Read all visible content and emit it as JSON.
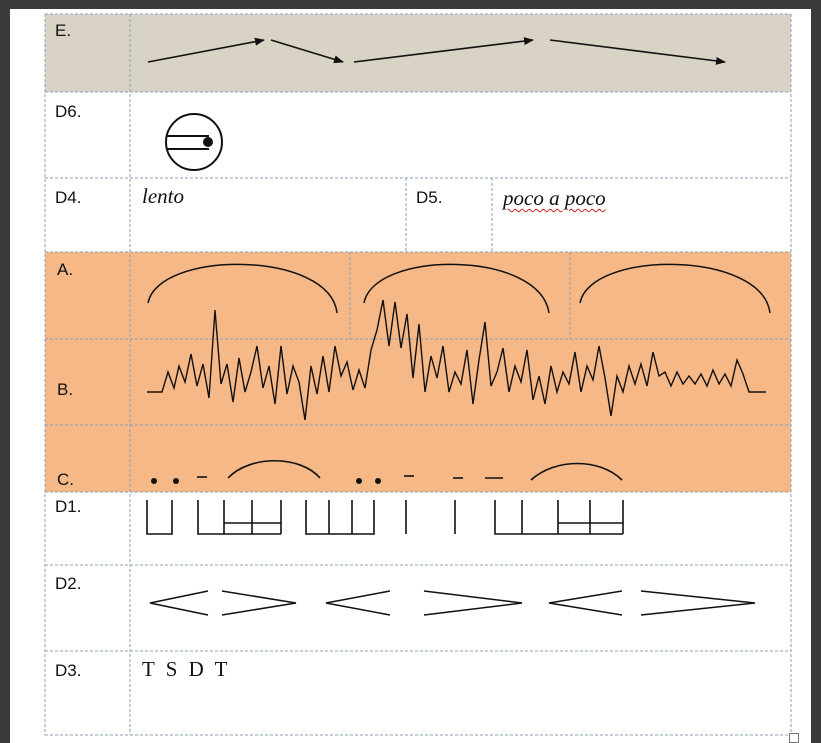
{
  "rows": {
    "e": {
      "label": "E."
    },
    "d6": {
      "label": "D6."
    },
    "d4": {
      "label": "D4.",
      "text": "lento"
    },
    "d5": {
      "label": "D5.",
      "text": "poco a poco"
    },
    "a": {
      "label": "A."
    },
    "b": {
      "label": "B."
    },
    "c": {
      "label": "C."
    },
    "d1": {
      "label": "D1."
    },
    "d2": {
      "label": "D2."
    },
    "d3": {
      "label": "D3.",
      "text": "T S D T"
    }
  },
  "colors": {
    "row_e_bg": "#d8d3c4",
    "row_abc_bg": "#f6b887",
    "grid": "#8ea0b8",
    "ink": "#111111"
  },
  "icons": {
    "d6": "circle-with-dot-and-lines-icon",
    "e": "arrows-trajectory-icon",
    "a": "phrase-arcs-icon",
    "b": "jagged-waveform-icon",
    "c": "dots-dashes-arcs-icon",
    "d1": "rhythm-brackets-icon",
    "d2": "hairpins-icon"
  }
}
